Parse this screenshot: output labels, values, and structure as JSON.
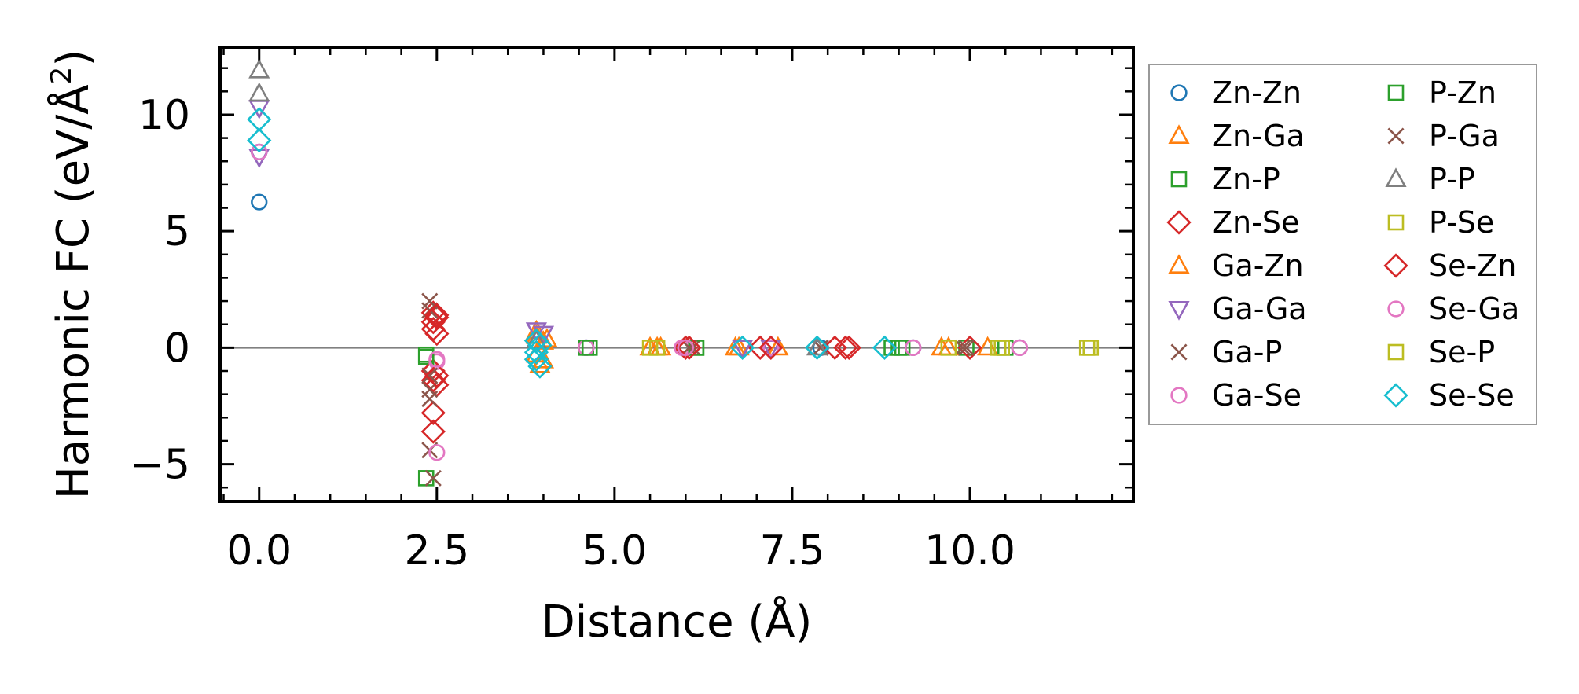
{
  "chart_data": {
    "type": "scatter",
    "title": "",
    "xlabel": "Distance (Å)",
    "ylabel": "Harmonic FC (eV/Å²)",
    "ylabel_parts": {
      "main": "Harmonic FC (eV/Å",
      "sup": "2",
      "close": ")"
    },
    "xlim": [
      -0.55,
      12.3
    ],
    "ylim": [
      -6.6,
      12.9
    ],
    "x_ticks": [
      0.0,
      2.5,
      5.0,
      7.5,
      10.0
    ],
    "x_tick_labels": [
      "0.0",
      "2.5",
      "5.0",
      "7.5",
      "10.0"
    ],
    "y_ticks": [
      -5,
      0,
      5,
      10
    ],
    "y_tick_labels": [
      "−5",
      "0",
      "5",
      "10"
    ],
    "zero_line": 0,
    "legend_position": "outside-right",
    "series": [
      {
        "name": "Zn-Zn",
        "marker": "circle",
        "color": "#1f77b4",
        "points": [
          [
            0,
            6.25
          ],
          [
            0,
            8.4
          ],
          [
            4.6,
            0
          ],
          [
            6.0,
            0
          ],
          [
            7.9,
            0
          ],
          [
            9.2,
            0
          ],
          [
            10.7,
            0
          ]
        ]
      },
      {
        "name": "Zn-Ga",
        "marker": "triangle-up",
        "color": "#ff7f0e",
        "points": [
          [
            3.9,
            0.5
          ],
          [
            3.9,
            -0.3
          ],
          [
            4.0,
            0.25
          ],
          [
            4.0,
            -0.55
          ],
          [
            5.5,
            0
          ],
          [
            5.65,
            0
          ],
          [
            6.7,
            0
          ],
          [
            7.3,
            0
          ],
          [
            9.6,
            0
          ],
          [
            10.25,
            0
          ]
        ]
      },
      {
        "name": "Zn-P",
        "marker": "square",
        "color": "#2ca02c",
        "points": [
          [
            2.35,
            -0.4
          ],
          [
            2.35,
            -5.6
          ],
          [
            4.6,
            0
          ],
          [
            6.15,
            0
          ],
          [
            8.9,
            0
          ],
          [
            9.05,
            0
          ],
          [
            9.95,
            0
          ],
          [
            10.5,
            0
          ]
        ]
      },
      {
        "name": "Zn-Se",
        "marker": "diamond",
        "color": "#d62728",
        "points": [
          [
            2.45,
            1.5
          ],
          [
            2.45,
            1.1
          ],
          [
            2.45,
            0.8
          ],
          [
            2.45,
            -1.0
          ],
          [
            2.45,
            -1.4
          ],
          [
            2.45,
            -2.8
          ],
          [
            2.45,
            -3.6
          ],
          [
            2.5,
            1.3
          ],
          [
            2.5,
            -1.6
          ],
          [
            6.0,
            0
          ],
          [
            7.05,
            0
          ],
          [
            8.1,
            0
          ],
          [
            8.3,
            0
          ],
          [
            10.0,
            0
          ]
        ]
      },
      {
        "name": "Ga-Zn",
        "marker": "triangle-up",
        "color": "#ff7f0e",
        "points": [
          [
            3.9,
            0.7
          ],
          [
            3.95,
            -0.75
          ],
          [
            4.05,
            0.35
          ],
          [
            5.6,
            0
          ],
          [
            6.75,
            0
          ],
          [
            9.7,
            0
          ]
        ]
      },
      {
        "name": "Ga-Ga",
        "marker": "triangle-down",
        "color": "#9467bd",
        "points": [
          [
            0,
            8.2
          ],
          [
            0,
            10.3
          ],
          [
            3.9,
            0.75
          ],
          [
            4.0,
            0.6
          ],
          [
            6.8,
            0
          ],
          [
            7.2,
            0
          ]
        ]
      },
      {
        "name": "Ga-P",
        "marker": "x",
        "color": "#8c564b",
        "points": [
          [
            2.4,
            2.0
          ],
          [
            2.4,
            -1.8
          ],
          [
            2.4,
            -2.2
          ],
          [
            2.4,
            -4.4
          ],
          [
            2.45,
            -5.6
          ],
          [
            6.1,
            0
          ],
          [
            7.9,
            0
          ],
          [
            9.9,
            0
          ]
        ]
      },
      {
        "name": "Ga-Se",
        "marker": "circle",
        "color": "#e377c2",
        "points": [
          [
            0,
            8.4
          ],
          [
            2.5,
            -0.6
          ],
          [
            2.5,
            -4.5
          ],
          [
            4.6,
            0
          ],
          [
            5.95,
            0
          ],
          [
            7.2,
            0
          ],
          [
            9.2,
            0
          ],
          [
            10.7,
            0
          ]
        ]
      },
      {
        "name": "P-Zn",
        "marker": "square",
        "color": "#2ca02c",
        "points": [
          [
            2.35,
            -0.3
          ],
          [
            4.65,
            0
          ],
          [
            6.15,
            0
          ],
          [
            9.0,
            0
          ]
        ]
      },
      {
        "name": "P-Ga",
        "marker": "x",
        "color": "#8c564b",
        "points": [
          [
            2.4,
            1.6
          ],
          [
            2.4,
            -1.2
          ],
          [
            6.05,
            0
          ],
          [
            9.95,
            0
          ]
        ]
      },
      {
        "name": "P-P",
        "marker": "triangle-up",
        "color": "#7f7f7f",
        "points": [
          [
            0,
            11.9
          ],
          [
            0,
            10.9
          ],
          [
            3.9,
            0.3
          ],
          [
            7.85,
            0
          ]
        ]
      },
      {
        "name": "P-Se",
        "marker": "square",
        "color": "#bcbd22",
        "points": [
          [
            5.6,
            0
          ],
          [
            9.7,
            0
          ],
          [
            10.4,
            0
          ],
          [
            11.65,
            0
          ]
        ]
      },
      {
        "name": "Se-Zn",
        "marker": "diamond",
        "color": "#d62728",
        "points": [
          [
            2.5,
            1.4
          ],
          [
            2.5,
            -1.2
          ],
          [
            2.5,
            0.6
          ],
          [
            6.05,
            0
          ],
          [
            7.2,
            0
          ],
          [
            8.25,
            0
          ]
        ]
      },
      {
        "name": "Se-Ga",
        "marker": "circle",
        "color": "#e377c2",
        "points": [
          [
            2.5,
            -0.5
          ],
          [
            6.0,
            0
          ],
          [
            9.2,
            0
          ],
          [
            10.7,
            0
          ]
        ]
      },
      {
        "name": "Se-P",
        "marker": "square",
        "color": "#bcbd22",
        "points": [
          [
            5.5,
            0
          ],
          [
            10.45,
            0
          ],
          [
            11.7,
            0
          ]
        ]
      },
      {
        "name": "Se-Se",
        "marker": "diamond",
        "color": "#17becf",
        "points": [
          [
            0,
            9.8
          ],
          [
            0,
            8.9
          ],
          [
            3.9,
            0.3
          ],
          [
            3.9,
            -0.2
          ],
          [
            3.95,
            -0.8
          ],
          [
            3.9,
            -0.5
          ],
          [
            3.95,
            0.1
          ],
          [
            6.8,
            0
          ],
          [
            7.85,
            0
          ],
          [
            8.8,
            0
          ]
        ]
      }
    ]
  }
}
